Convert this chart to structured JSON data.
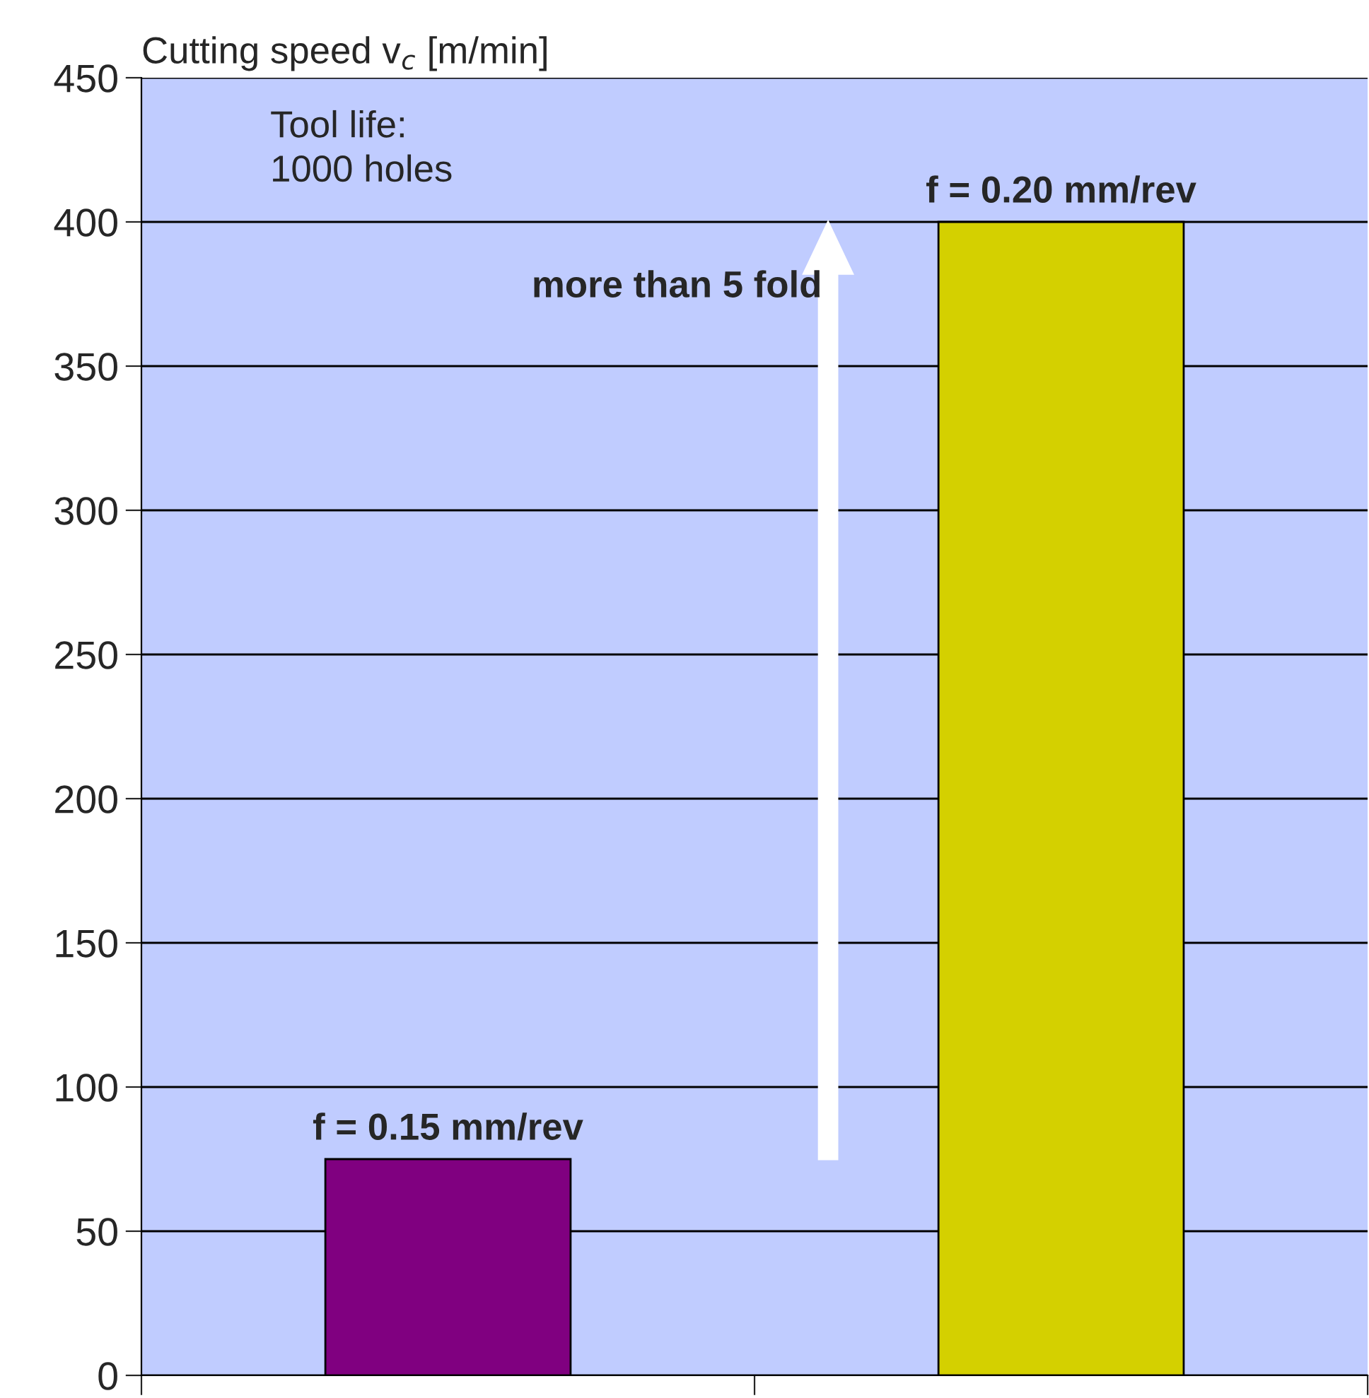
{
  "chart_data": {
    "type": "bar",
    "ylabel": "Cutting speed v$_{c}$ [m/min]",
    "categories": [
      null,
      null
    ],
    "values": [
      75,
      400
    ],
    "colors": [
      "#800080",
      "#d4d000"
    ],
    "ylim": [
      0,
      450
    ],
    "yticks": [
      0,
      50,
      100,
      150,
      200,
      250,
      300,
      350,
      400,
      450
    ],
    "grid": "y",
    "annotations": [
      {
        "text": "f = 0.15 mm/rev",
        "y": 75
      },
      {
        "text": "f = 0.20 mm/rev",
        "y": 400
      },
      "Tool life:\n1000 holes",
      "more than 5 fold"
    ]
  }
}
